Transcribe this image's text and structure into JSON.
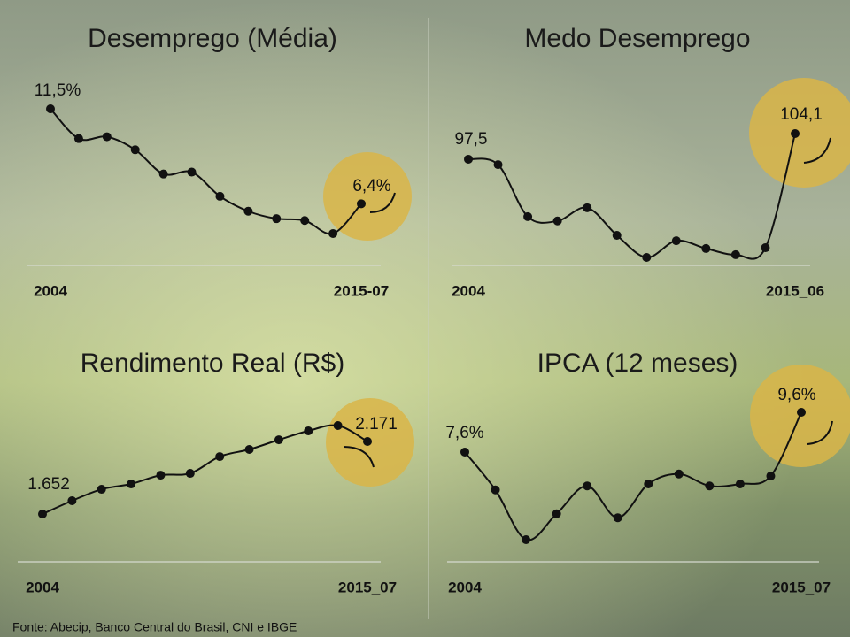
{
  "chart_data": [
    {
      "type": "line",
      "title": "Desemprego (Média)",
      "categories": [
        "2004",
        null,
        null,
        null,
        null,
        null,
        null,
        null,
        null,
        null,
        null,
        "2015-07"
      ],
      "values": [
        11.5,
        9.9,
        10.0,
        9.3,
        8.0,
        8.1,
        6.8,
        6.0,
        5.6,
        5.5,
        4.8,
        6.4
      ],
      "value_labels": [
        "11,5%",
        null,
        null,
        null,
        null,
        null,
        null,
        null,
        null,
        null,
        null,
        "6,4%"
      ],
      "color": "#111111"
    },
    {
      "type": "line",
      "title": "Medo Desemprego",
      "categories": [
        "2004",
        null,
        null,
        null,
        null,
        null,
        null,
        null,
        null,
        null,
        null,
        "2015_06"
      ],
      "values": [
        97.5,
        96.1,
        82.7,
        81.6,
        85.0,
        77.9,
        72.2,
        76.5,
        74.5,
        72.9,
        74.7,
        104.1
      ],
      "value_labels": [
        "97,5",
        null,
        null,
        null,
        null,
        null,
        null,
        null,
        null,
        null,
        null,
        "104,1"
      ],
      "color": "#111111"
    },
    {
      "type": "line",
      "title": "Rendimento Real (R$)",
      "categories": [
        "2004",
        null,
        null,
        null,
        null,
        null,
        null,
        null,
        null,
        null,
        null,
        "2015_07"
      ],
      "values": [
        1652,
        1747,
        1829,
        1867,
        1930,
        1943,
        2063,
        2114,
        2183,
        2247,
        2285,
        2171
      ],
      "value_labels": [
        "1.652",
        null,
        null,
        null,
        null,
        null,
        null,
        null,
        null,
        null,
        null,
        "2.171"
      ],
      "color": "#111111"
    },
    {
      "type": "line",
      "title": "IPCA (12 meses)",
      "categories": [
        "2004",
        null,
        null,
        null,
        null,
        null,
        null,
        null,
        null,
        null,
        null,
        "2015_07"
      ],
      "values": [
        7.6,
        5.7,
        3.2,
        4.5,
        5.9,
        4.3,
        6.0,
        6.5,
        5.9,
        6.0,
        6.4,
        9.6
      ],
      "value_labels": [
        "7,6%",
        null,
        null,
        null,
        null,
        null,
        null,
        null,
        null,
        null,
        null,
        "9,6%"
      ],
      "color": "#111111"
    }
  ],
  "source": "Fonte: Abecip, Banco Central do Brasil, CNI e IBGE"
}
